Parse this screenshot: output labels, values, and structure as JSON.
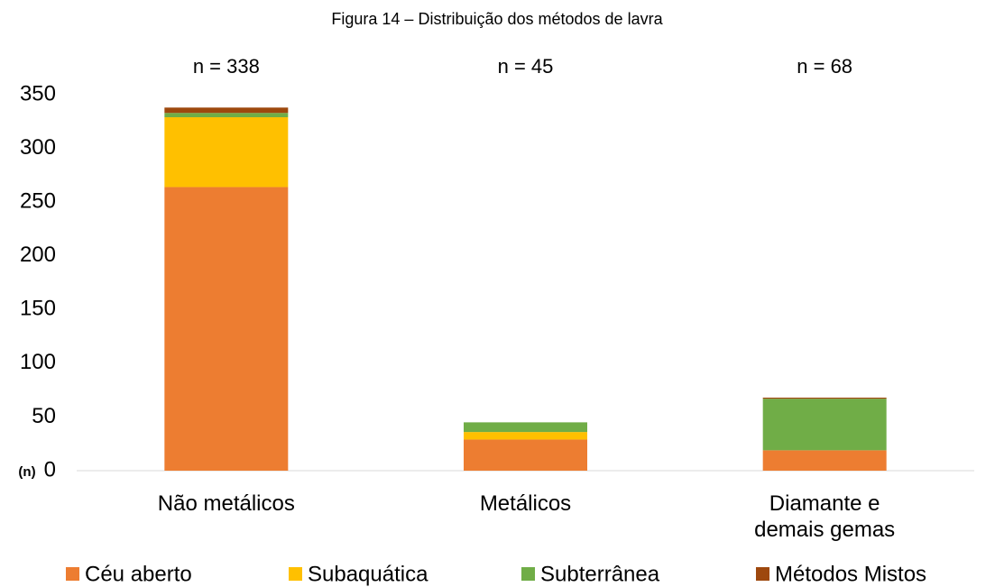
{
  "chart_data": {
    "type": "stacked_bar",
    "title": "Figura 14 – Distribuição dos métodos de lavra",
    "y_label": "(n)",
    "categories": [
      "Não metálicos",
      "Metálicos",
      "Diamante e demais gemas"
    ],
    "annotations": [
      "n = 338",
      "n = 45",
      "n = 68"
    ],
    "series": [
      {
        "name": "Céu aberto",
        "color": "#ED7D31",
        "values": [
          264,
          29,
          19
        ]
      },
      {
        "name": "Subaquática",
        "color": "#FFC000",
        "values": [
          65,
          7,
          0
        ]
      },
      {
        "name": "Subterrânea",
        "color": "#70AD47",
        "values": [
          4,
          9,
          48
        ]
      },
      {
        "name": "Métodos Mistos",
        "color": "#9E480E",
        "values": [
          5,
          0,
          1
        ]
      }
    ],
    "ylim": [
      0,
      350
    ],
    "yticks": [
      0,
      50,
      100,
      150,
      200,
      250,
      300,
      350
    ],
    "grid": false,
    "legend": "bottom"
  }
}
